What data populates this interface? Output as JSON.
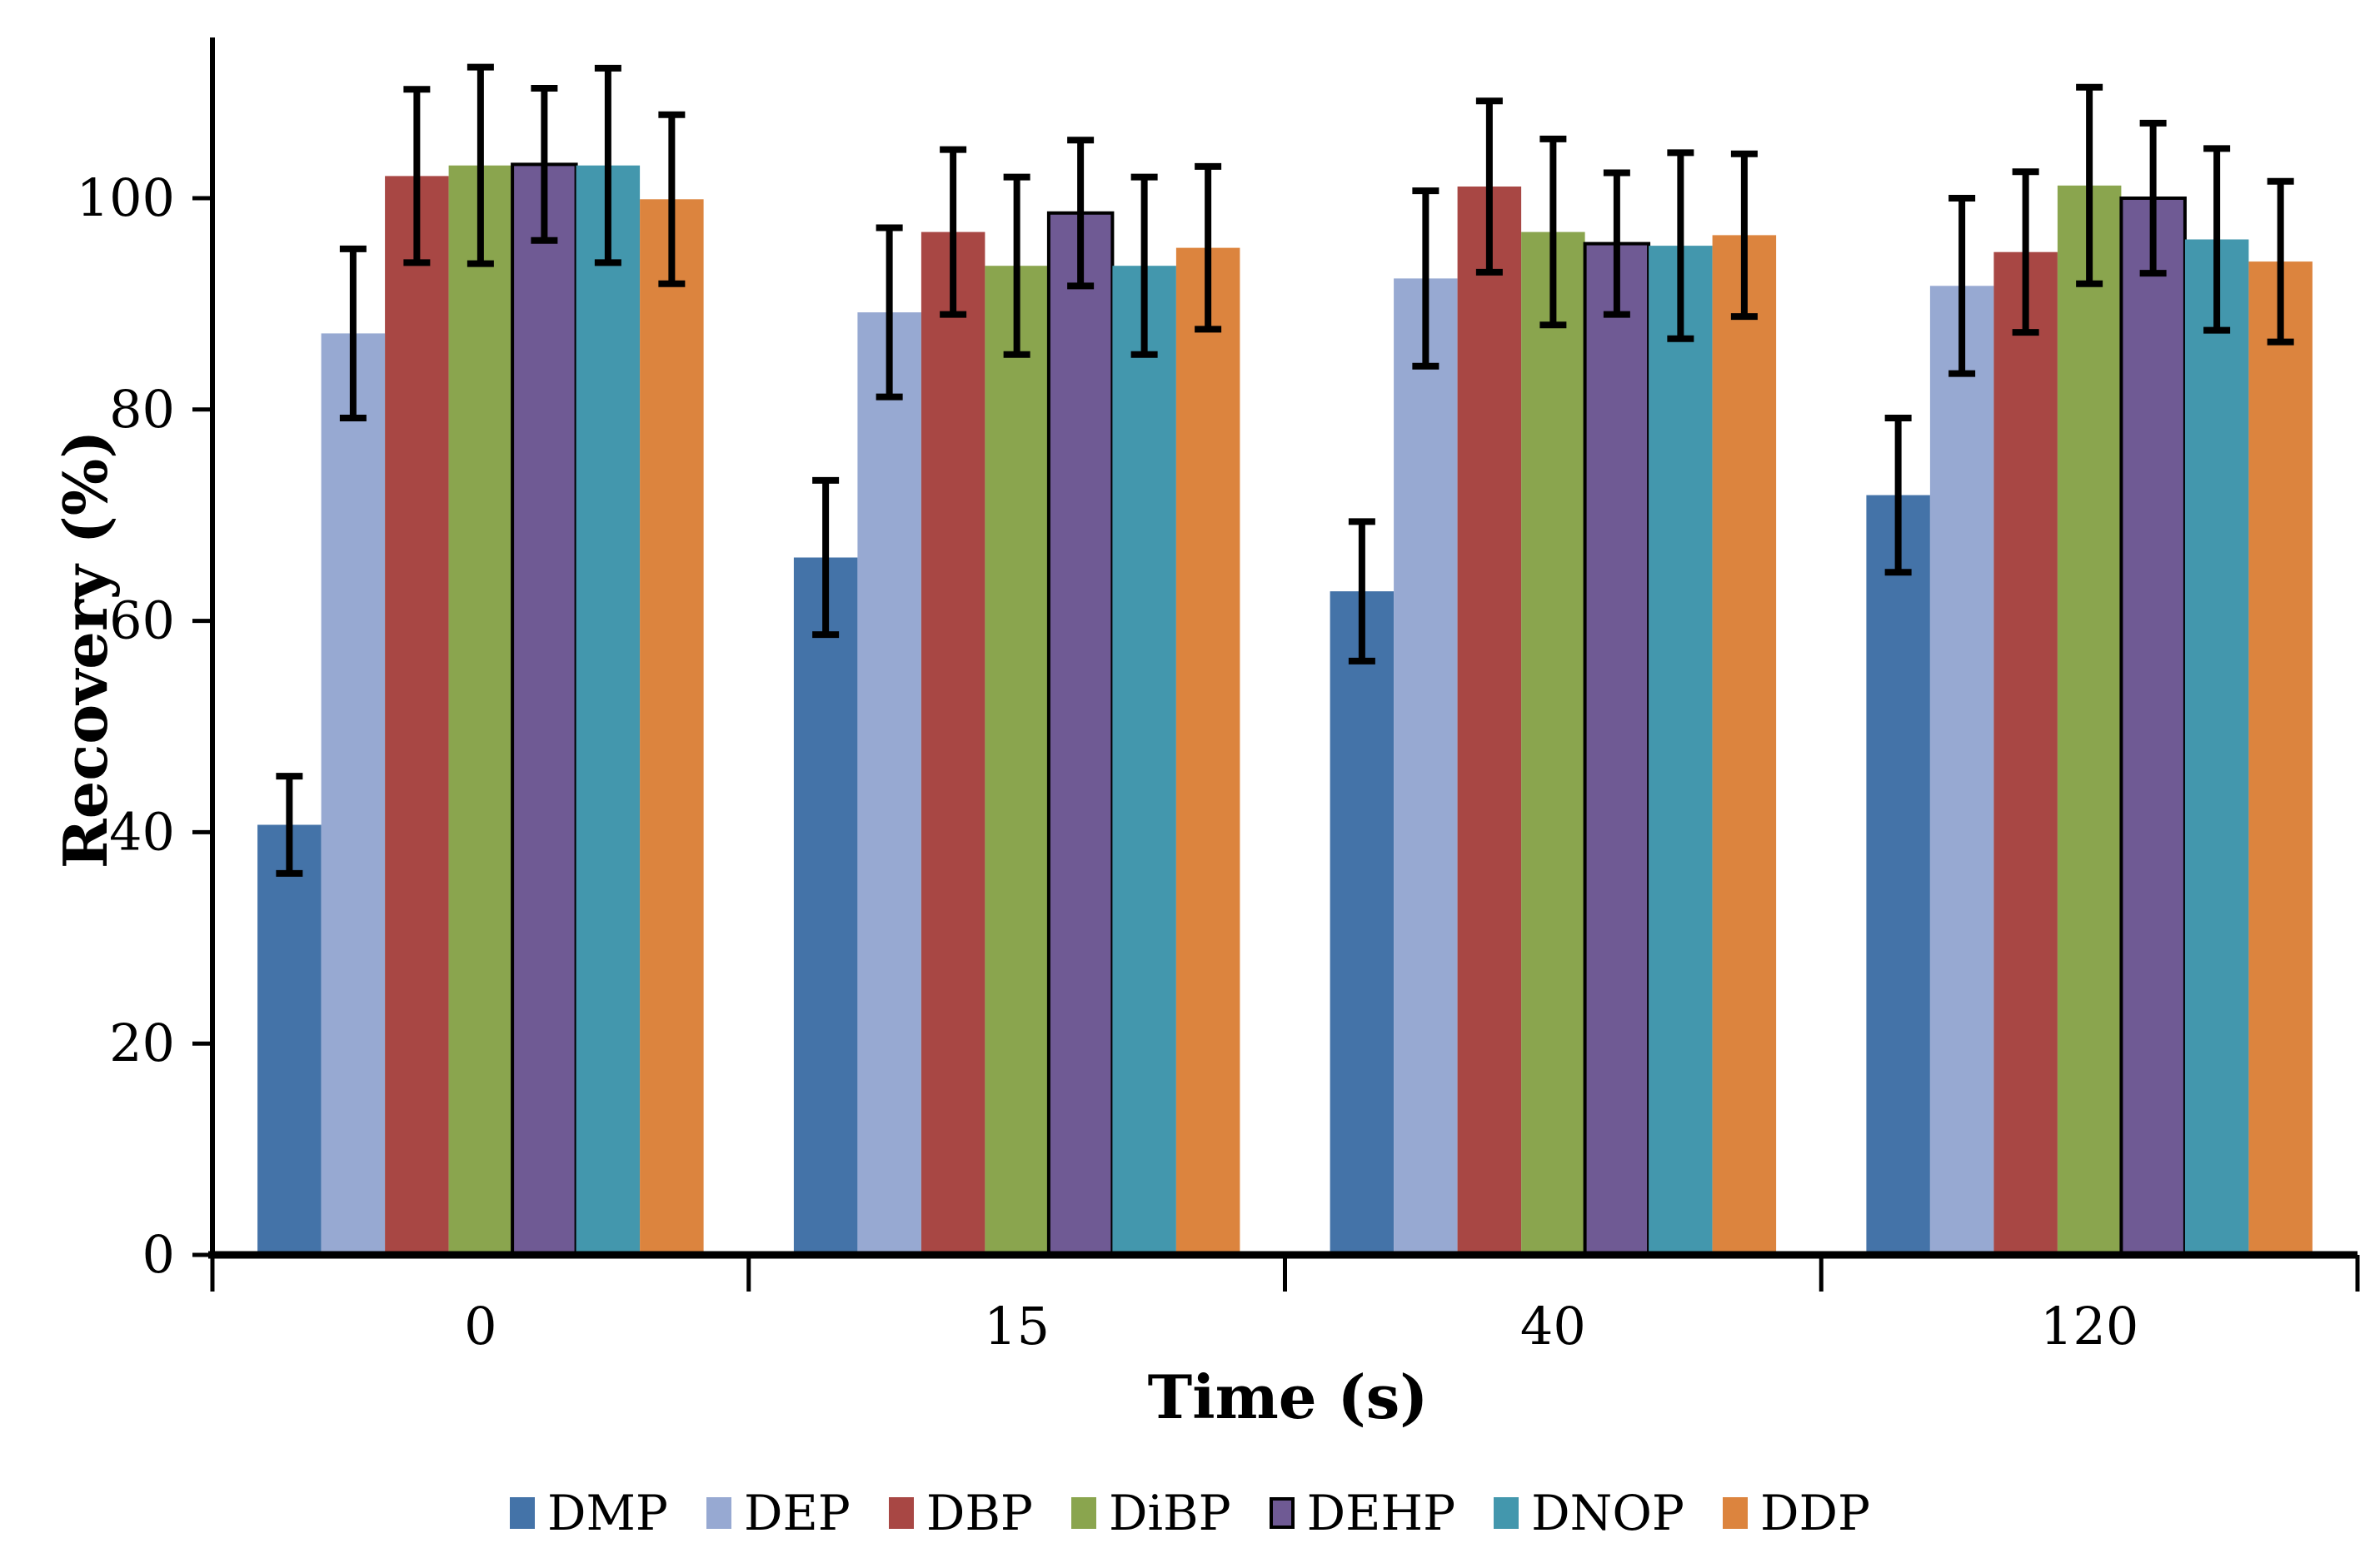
{
  "chart_data": {
    "type": "bar",
    "title": "",
    "xlabel": "Time (s)",
    "ylabel": "Recovery (%)",
    "categories": [
      "0",
      "15",
      "40",
      "120"
    ],
    "y_ticks": [
      0,
      20,
      40,
      60,
      80,
      100
    ],
    "ylim": [
      0,
      115
    ],
    "grid": false,
    "legend_position": "bottom",
    "axis_color": "#000000",
    "error_bar_color": "#000000",
    "background_color": "#FFFFFF",
    "series": [
      {
        "name": "DMP",
        "color": "#4473A8",
        "values": [
          40.7,
          66.0,
          62.8,
          71.9
        ],
        "errors": [
          4.6,
          7.3,
          6.6,
          7.3
        ]
      },
      {
        "name": "DEP",
        "color": "#97A9D2",
        "values": [
          87.2,
          89.2,
          92.4,
          91.7
        ],
        "errors": [
          8.0,
          8.0,
          8.3,
          8.3
        ]
      },
      {
        "name": "DBP",
        "color": "#A84744",
        "values": [
          102.1,
          96.8,
          101.1,
          94.9
        ],
        "errors": [
          8.2,
          7.8,
          8.1,
          7.6
        ]
      },
      {
        "name": "DiBP",
        "color": "#8AA54E",
        "values": [
          103.1,
          93.6,
          96.8,
          101.2
        ],
        "errors": [
          9.3,
          8.4,
          8.8,
          9.3
        ]
      },
      {
        "name": "DEHP",
        "color": "#6F5A94",
        "outline": "#000000",
        "values": [
          103.2,
          98.6,
          95.7,
          100.0
        ],
        "errors": [
          7.2,
          6.9,
          6.7,
          7.1
        ]
      },
      {
        "name": "DNOP",
        "color": "#4397AD",
        "values": [
          103.1,
          93.6,
          95.5,
          96.1
        ],
        "errors": [
          9.2,
          8.4,
          8.8,
          8.6
        ]
      },
      {
        "name": "DDP",
        "color": "#DC843E",
        "values": [
          99.9,
          95.3,
          96.5,
          94.0
        ],
        "errors": [
          8.0,
          7.7,
          7.7,
          7.6
        ]
      }
    ]
  }
}
